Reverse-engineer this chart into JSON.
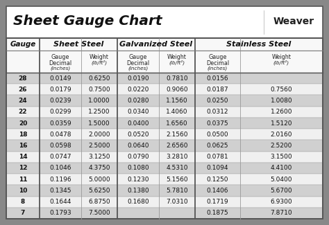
{
  "title": "Sheet Gauge Chart",
  "bg_outer": "#888888",
  "bg_white": "#ffffff",
  "bg_title": "#ffffff",
  "row_light": "#f0f0f0",
  "row_dark": "#d0d0d0",
  "header_bg": "#e8e8e8",
  "border_color": "#555555",
  "gauges": [
    "28",
    "26",
    "24",
    "22",
    "20",
    "18",
    "16",
    "14",
    "12",
    "11",
    "10",
    "8",
    "7"
  ],
  "sheet_steel_dec": [
    "0.0149",
    "0.0179",
    "0.0239",
    "0.0299",
    "0.0359",
    "0.0478",
    "0.0598",
    "0.0747",
    "0.1046",
    "0.1196",
    "0.1345",
    "0.1644",
    "0.1793"
  ],
  "sheet_steel_wt": [
    "0.6250",
    "0.7500",
    "1.0000",
    "1.2500",
    "1.5000",
    "2.0000",
    "2.5000",
    "3.1250",
    "4.3750",
    "5.0000",
    "5.6250",
    "6.8750",
    "7.5000"
  ],
  "galv_dec": [
    "0.0190",
    "0.0220",
    "0.0280",
    "0.0340",
    "0.0400",
    "0.0520",
    "0.0640",
    "0.0790",
    "0.1080",
    "0.1230",
    "0.1380",
    "0.1680",
    ""
  ],
  "galv_wt": [
    "0.7810",
    "0.9060",
    "1.1560",
    "1.4060",
    "1.6560",
    "2.1560",
    "2.6560",
    "3.2810",
    "4.5310",
    "5.1560",
    "5.7810",
    "7.0310",
    ""
  ],
  "stain_dec": [
    "0.0156",
    "0.0187",
    "0.0250",
    "0.0312",
    "0.0375",
    "0.0500",
    "0.0625",
    "0.0781",
    "0.1094",
    "0.1250",
    "0.1406",
    "0.1719",
    "0.1875"
  ],
  "stain_wt": [
    "",
    "0.7560",
    "1.0080",
    "1.2600",
    "1.5120",
    "2.0160",
    "2.5200",
    "3.1500",
    "4.4100",
    "5.0400",
    "5.6700",
    "6.9300",
    "7.8710"
  ],
  "figw": 4.74,
  "figh": 3.25,
  "dpi": 100
}
